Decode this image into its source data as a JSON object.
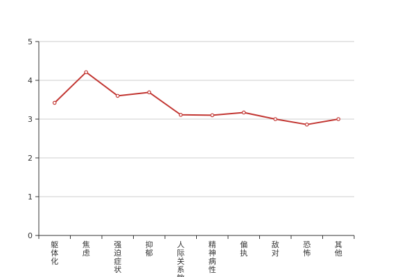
{
  "chart_data": {
    "type": "line",
    "categories": [
      "躯体化",
      "焦虑",
      "强迫症状",
      "抑郁",
      "人际关系敏感",
      "精神病性",
      "偏执",
      "敌对",
      "恐怖",
      "其他"
    ],
    "series": [
      {
        "values": [
          3.42,
          4.21,
          3.6,
          3.69,
          3.11,
          3.1,
          3.17,
          3.0,
          2.86,
          3.0
        ]
      }
    ],
    "yticks": [
      "0",
      "1",
      "2",
      "3",
      "4",
      "5"
    ],
    "ylim": [
      0,
      5
    ],
    "grid": true,
    "line_color": "#c23531",
    "title": "",
    "xlabel": "",
    "ylabel": ""
  }
}
